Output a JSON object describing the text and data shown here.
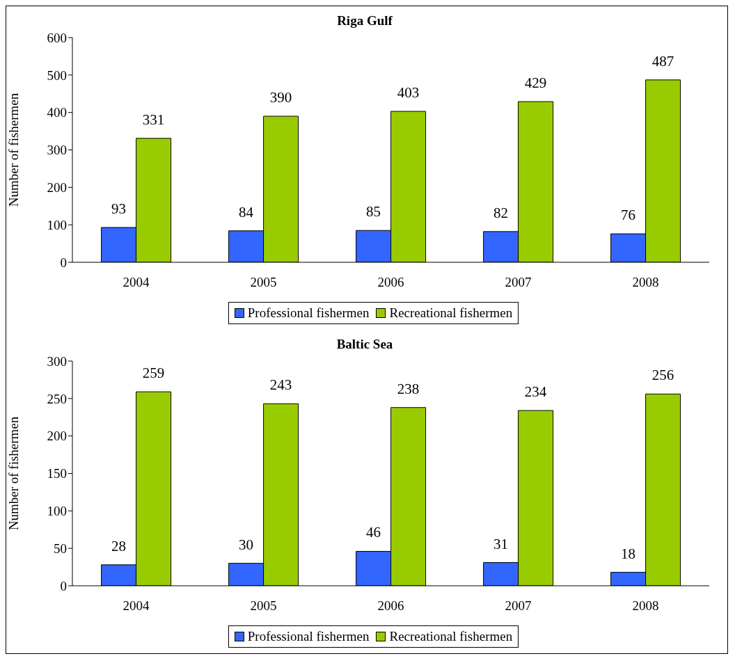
{
  "chart_data": [
    {
      "type": "bar",
      "title": "Riga Gulf",
      "ylabel": "Number of fishermen",
      "categories": [
        "2004",
        "2005",
        "2006",
        "2007",
        "2008"
      ],
      "series": [
        {
          "name": "Professional fishermen",
          "color": "#3366ff",
          "values": [
            93,
            84,
            85,
            82,
            76
          ]
        },
        {
          "name": "Recreational fishermen",
          "color": "#99cc00",
          "values": [
            331,
            390,
            403,
            429,
            487
          ]
        }
      ],
      "ylim": [
        0,
        600
      ],
      "yticks": [
        0,
        100,
        200,
        300,
        400,
        500,
        600
      ],
      "grid": false,
      "legend": "bottom",
      "data_labels": true
    },
    {
      "type": "bar",
      "title": "Baltic Sea",
      "ylabel": "Number of fishermen",
      "categories": [
        "2004",
        "2005",
        "2006",
        "2007",
        "2008"
      ],
      "series": [
        {
          "name": "Professional fishermen",
          "color": "#3366ff",
          "values": [
            28,
            30,
            46,
            31,
            18
          ]
        },
        {
          "name": "Recreational fishermen",
          "color": "#99cc00",
          "values": [
            259,
            243,
            238,
            234,
            256
          ]
        }
      ],
      "ylim": [
        0,
        300
      ],
      "yticks": [
        0,
        50,
        100,
        150,
        200,
        250,
        300
      ],
      "grid": false,
      "legend": "bottom",
      "data_labels": true
    }
  ]
}
